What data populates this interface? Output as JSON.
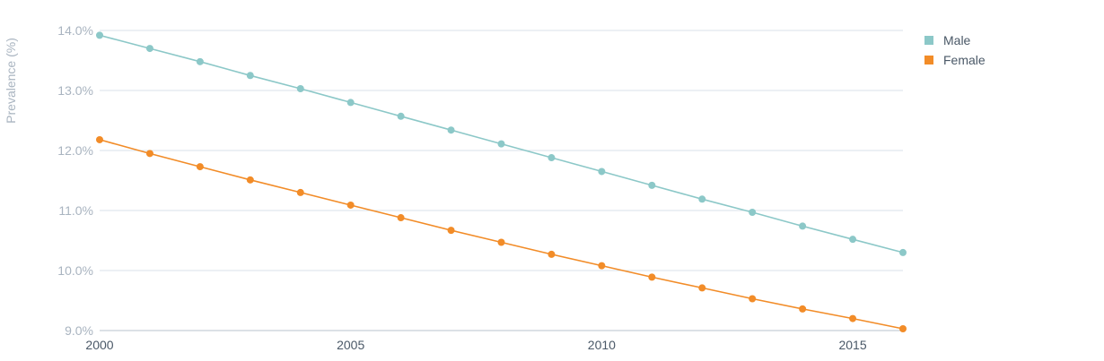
{
  "chart_data": {
    "type": "line",
    "ylabel": "Prevalence (%)",
    "xlabel": "",
    "x": [
      2000,
      2001,
      2002,
      2003,
      2004,
      2005,
      2006,
      2007,
      2008,
      2009,
      2010,
      2011,
      2012,
      2013,
      2014,
      2015,
      2016
    ],
    "xticks": [
      2000,
      2005,
      2010,
      2015
    ],
    "xtick_labels": [
      "2000",
      "2005",
      "2010",
      "2015"
    ],
    "xlim": [
      2000,
      2016
    ],
    "ylim": [
      9.0,
      14.0
    ],
    "yticks": [
      9.0,
      10.0,
      11.0,
      12.0,
      13.0,
      14.0
    ],
    "ytick_labels": [
      "9.0%",
      "10.0%",
      "11.0%",
      "12.0%",
      "13.0%",
      "14.0%"
    ],
    "grid": true,
    "legend": "right",
    "series": [
      {
        "name": "Male",
        "color": "#8cc8c8",
        "values": [
          13.92,
          13.7,
          13.48,
          13.25,
          13.03,
          12.8,
          12.57,
          12.34,
          12.11,
          11.88,
          11.65,
          11.42,
          11.19,
          10.97,
          10.74,
          10.52,
          10.3
        ]
      },
      {
        "name": "Female",
        "color": "#f28c28",
        "values": [
          12.18,
          11.95,
          11.73,
          11.51,
          11.3,
          11.09,
          10.88,
          10.67,
          10.47,
          10.27,
          10.08,
          9.89,
          9.71,
          9.53,
          9.36,
          9.2,
          9.03
        ]
      }
    ]
  }
}
